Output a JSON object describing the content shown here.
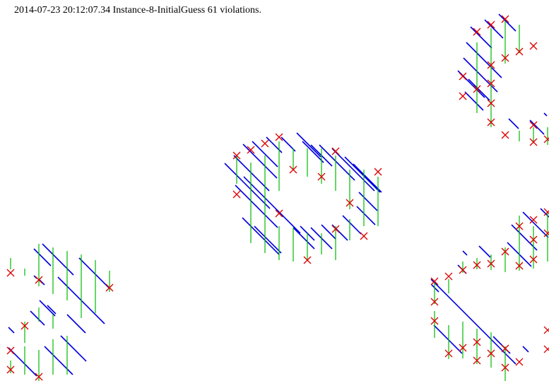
{
  "caption": "2014-07-23 20:12:07.34 Instance-8-InitialGuess 61 violations.",
  "colors": {
    "diagonal": "#0000dd",
    "vertical": "#00bb00",
    "violation": "#dd0000"
  },
  "legend_semantics": {
    "diagonal_segments": "blue-line",
    "vertical_segments": "green-line",
    "violation_markers": "red-x-icon"
  }
}
